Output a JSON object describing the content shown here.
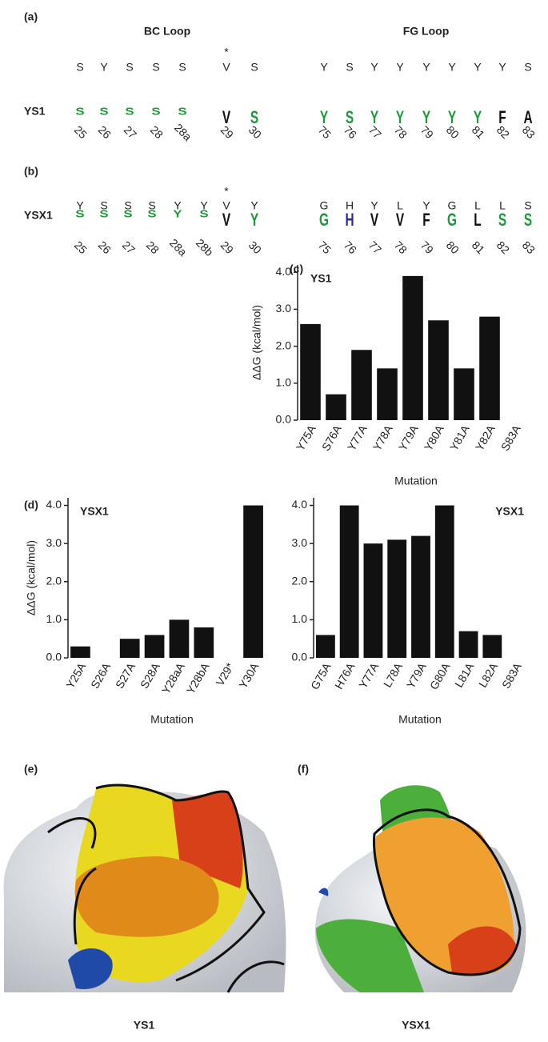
{
  "panel_labels": [
    "(a)",
    "(b)",
    "(c)",
    "(d)",
    "(e)",
    "(f)"
  ],
  "logos": [
    {
      "row_label": "YS1",
      "asterisk": "*",
      "segments": [
        {
          "title": "BC Loop",
          "wildtype": [
            "S",
            "Y",
            "S",
            "S",
            "S",
            "V",
            "S"
          ],
          "logo_letters": [
            "S",
            "S",
            "S",
            "S",
            "S",
            "V",
            "S"
          ],
          "positions": [
            "25",
            "26",
            "27",
            "28",
            "28a",
            "29",
            "30"
          ]
        },
        {
          "title": "FG Loop",
          "wildtype": [
            "Y",
            "S",
            "Y",
            "Y",
            "Y",
            "Y",
            "Y",
            "Y",
            "S"
          ],
          "logo_letters": [
            "Y",
            "S",
            "Y",
            "Y",
            "Y",
            "Y",
            "Y",
            "F",
            "A"
          ],
          "positions": [
            "75",
            "76",
            "77",
            "78",
            "79",
            "80",
            "81",
            "82",
            "83"
          ]
        }
      ]
    },
    {
      "row_label": "YSX1",
      "asterisk": "*",
      "segments": [
        {
          "wildtype": [
            "Y",
            "S",
            "S",
            "S",
            "Y",
            "Y",
            "V",
            "Y"
          ],
          "logo_letters": [
            "S",
            "S",
            "S",
            "S",
            "Y",
            "S",
            "V",
            "Y"
          ],
          "positions": [
            "25",
            "26",
            "27",
            "28",
            "28a",
            "28b",
            "29",
            "30"
          ]
        },
        {
          "wildtype": [
            "G",
            "H",
            "Y",
            "L",
            "Y",
            "G",
            "L",
            "L",
            "S"
          ],
          "logo_letters": [
            "G",
            "H",
            "V",
            "V",
            "F",
            "G",
            "L",
            "S",
            "S"
          ],
          "positions": [
            "75",
            "76",
            "77",
            "78",
            "79",
            "80",
            "81",
            "82",
            "83"
          ]
        }
      ]
    }
  ],
  "chart_data": [
    {
      "type": "bar",
      "title": "YS1",
      "ylabel": "ΔΔG (kcal/mol)",
      "xlabel": "Mutation",
      "color": "#111111",
      "categories": [
        "Y75A",
        "S76A",
        "Y77A",
        "Y78A",
        "Y79A",
        "Y80A",
        "Y81A",
        "Y82A",
        "S83A"
      ],
      "values": [
        2.6,
        0.7,
        1.9,
        1.4,
        3.9,
        2.7,
        1.4,
        2.8,
        0
      ],
      "ylim": [
        0,
        4.2
      ],
      "yticks": [
        {
          "value": 0,
          "label": "0.0"
        },
        {
          "value": 1,
          "label": "1.0"
        },
        {
          "value": 2,
          "label": "2.0"
        },
        {
          "value": 3,
          "label": "3.0"
        },
        {
          "value": 4,
          "label": "4.0"
        }
      ]
    },
    {
      "type": "bar",
      "title": "YSX1",
      "ylabel": "ΔΔG (kcal/mol)",
      "xlabel": "Mutation",
      "color": "#111111",
      "categories": [
        "Y25A",
        "S26A",
        "S27A",
        "S28A",
        "Y28aA",
        "Y28bA",
        "V29*",
        "Y30A"
      ],
      "values": [
        0.3,
        0,
        0.5,
        0.6,
        1.0,
        0.8,
        null,
        4.0
      ],
      "ylim": [
        0,
        4.2
      ],
      "yticks": [
        {
          "value": 0,
          "label": "0.0"
        },
        {
          "value": 1,
          "label": "1.0"
        },
        {
          "value": 2,
          "label": "2.0"
        },
        {
          "value": 3,
          "label": "3.0"
        },
        {
          "value": 4,
          "label": "4.0"
        }
      ]
    },
    {
      "type": "bar",
      "title": "YSX1",
      "xlabel": "Mutation",
      "color": "#111111",
      "categories": [
        "G75A",
        "H76A",
        "Y77A",
        "L78A",
        "Y79A",
        "G80A",
        "L81A",
        "L82A",
        "S83A"
      ],
      "values": [
        0.6,
        4.0,
        3.0,
        3.1,
        3.2,
        4.0,
        0.7,
        0.6,
        0
      ],
      "ylim": [
        0,
        4.2
      ],
      "yticks": [
        {
          "value": 0,
          "label": "0.0"
        },
        {
          "value": 1,
          "label": "1.0"
        },
        {
          "value": 2,
          "label": "2.0"
        },
        {
          "value": 3,
          "label": "3.0"
        },
        {
          "value": 4,
          "label": "4.0"
        }
      ]
    }
  ],
  "images": [
    {
      "caption": "YS1"
    },
    {
      "caption": "YSX1"
    }
  ]
}
